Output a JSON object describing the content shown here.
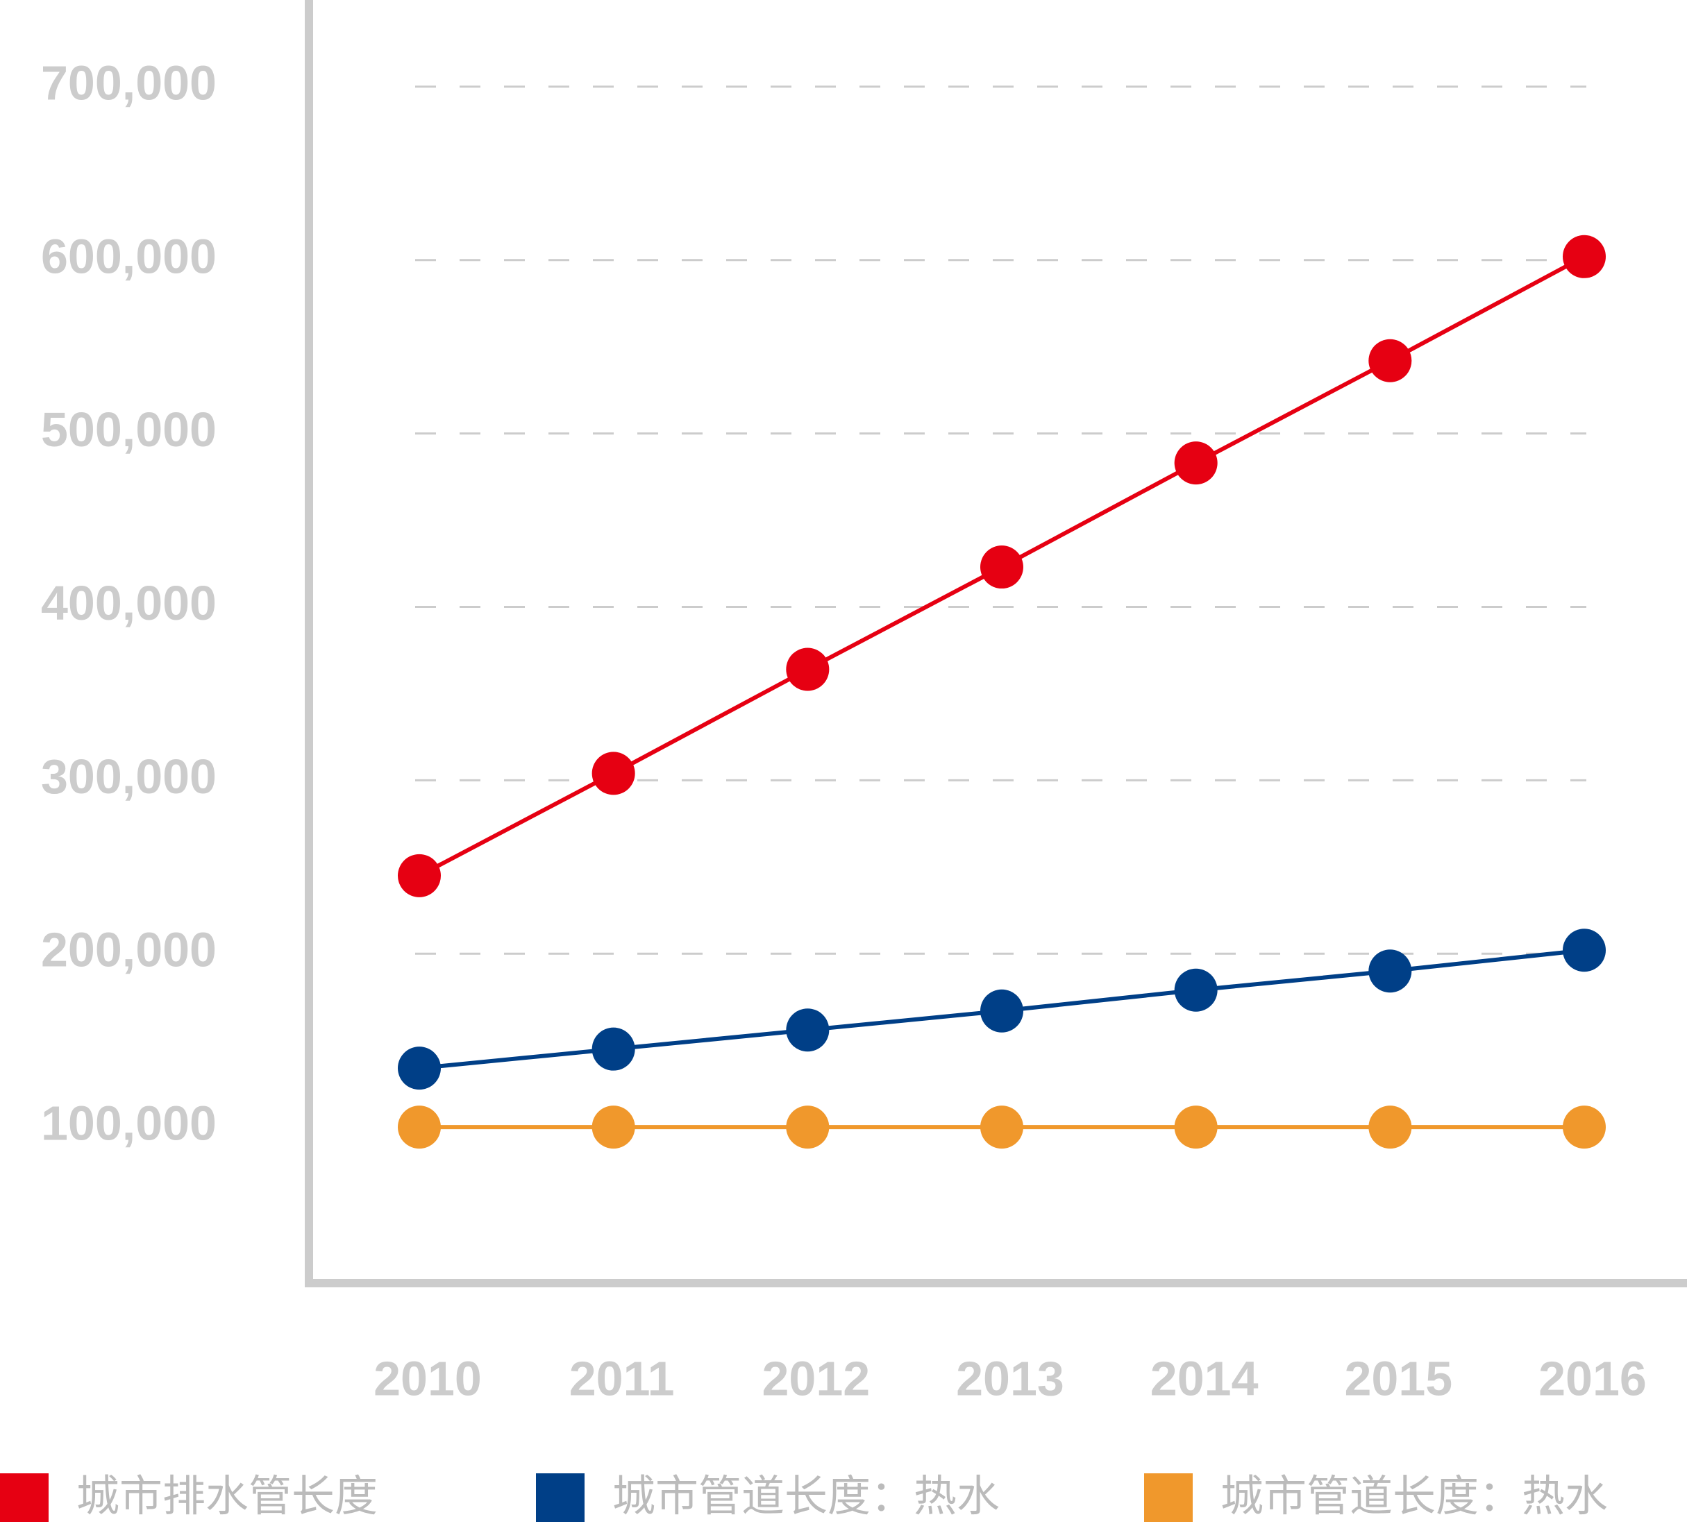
{
  "chart_data": {
    "type": "line",
    "categories": [
      "2010",
      "2011",
      "2012",
      "2013",
      "2014",
      "2015",
      "2016"
    ],
    "series": [
      {
        "name": "城市排水管长度",
        "color": "#e60012",
        "values": [
          245000,
          304000,
          364000,
          423000,
          483000,
          542000,
          602000
        ]
      },
      {
        "name": "城市管道长度：热水",
        "color": "#003f87",
        "values": [
          134000,
          145000,
          156000,
          167000,
          179000,
          190000,
          202000
        ]
      },
      {
        "name": "城市管道长度：热水",
        "color": "#f0982c",
        "values": [
          100000,
          100000,
          100000,
          100000,
          100000,
          100000,
          100000
        ]
      }
    ],
    "ylim": [
      10000,
      750000
    ],
    "yticks": [
      {
        "value": 100000,
        "label": "100,000"
      },
      {
        "value": 200000,
        "label": "200,000"
      },
      {
        "value": 300000,
        "label": "300,000"
      },
      {
        "value": 400000,
        "label": "400,000"
      },
      {
        "value": 500000,
        "label": "500,000"
      },
      {
        "value": 600000,
        "label": "600,000"
      },
      {
        "value": 700000,
        "label": "700,000"
      }
    ],
    "grid": true,
    "legend": "bottom"
  }
}
